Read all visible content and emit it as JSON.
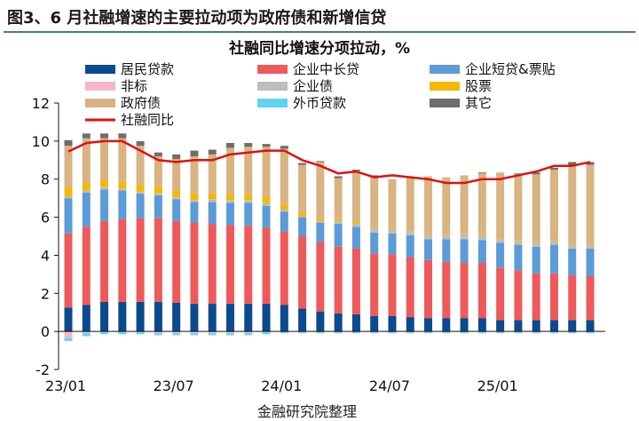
{
  "figure_title": "图3、6 月社融增速的主要拉动项为政府债和新增信贷",
  "source_note": "金融研究院整理",
  "chart_data": {
    "type": "bar",
    "stacked": true,
    "title": "社融同比增速分项拉动，%",
    "xlabel": "",
    "ylabel": "",
    "ylim": [
      -2,
      12
    ],
    "yticks": [
      "-2",
      "0",
      "2",
      "4",
      "6",
      "8",
      "10",
      "12"
    ],
    "x_tick_labels": [
      "23/01",
      "23/07",
      "24/01",
      "24/07",
      "25/01"
    ],
    "x_tick_index": [
      0,
      6,
      12,
      18,
      24
    ],
    "grid": false,
    "legend_position": "top",
    "categories": [
      "2023-01",
      "2023-02",
      "2023-03",
      "2023-04",
      "2023-05",
      "2023-06",
      "2023-07",
      "2023-08",
      "2023-09",
      "2023-10",
      "2023-11",
      "2023-12",
      "2024-01",
      "2024-02",
      "2024-03",
      "2024-04",
      "2024-05",
      "2024-06",
      "2024-07",
      "2024-08",
      "2024-09",
      "2024-10",
      "2024-11",
      "2024-12",
      "2025-01",
      "2025-02",
      "2025-03",
      "2025-04",
      "2025-05",
      "2025-06"
    ],
    "series": [
      {
        "name": "居民贷款",
        "color": "#0a4a8e",
        "values": [
          1.25,
          1.4,
          1.55,
          1.55,
          1.55,
          1.55,
          1.5,
          1.45,
          1.45,
          1.45,
          1.45,
          1.45,
          1.4,
          1.2,
          1.05,
          0.95,
          0.9,
          0.8,
          0.8,
          0.75,
          0.7,
          0.7,
          0.7,
          0.7,
          0.6,
          0.6,
          0.6,
          0.6,
          0.6,
          0.6
        ]
      },
      {
        "name": "企业中长贷",
        "color": "#ee5a5a",
        "values": [
          3.9,
          4.1,
          4.25,
          4.35,
          4.4,
          4.4,
          4.3,
          4.25,
          4.2,
          4.15,
          4.1,
          4.0,
          3.85,
          3.8,
          3.65,
          3.5,
          3.45,
          3.3,
          3.25,
          3.15,
          3.05,
          2.95,
          2.9,
          2.9,
          2.75,
          2.6,
          2.45,
          2.45,
          2.35,
          2.3
        ]
      },
      {
        "name": "企业短贷&票贴",
        "color": "#5b9bd8",
        "values": [
          1.85,
          1.8,
          1.65,
          1.5,
          1.3,
          1.2,
          1.15,
          1.1,
          1.15,
          1.15,
          1.2,
          1.15,
          1.05,
          1.0,
          1.0,
          1.2,
          1.15,
          1.1,
          1.1,
          1.15,
          1.1,
          1.2,
          1.25,
          1.2,
          1.3,
          1.35,
          1.4,
          1.5,
          1.4,
          1.45
        ]
      },
      {
        "name": "非标",
        "color": "#f7b6c8",
        "values": [
          -0.35,
          -0.1,
          -0.05,
          -0.05,
          -0.05,
          -0.1,
          -0.1,
          -0.1,
          -0.1,
          -0.1,
          -0.1,
          -0.05,
          -0.05,
          -0.05,
          -0.05,
          -0.05,
          -0.05,
          -0.05,
          -0.05,
          -0.05,
          -0.05,
          -0.05,
          -0.05,
          -0.05,
          -0.05,
          -0.05,
          -0.05,
          -0.05,
          -0.05,
          -0.05
        ]
      },
      {
        "name": "企业债",
        "color": "#bdbdbd",
        "values": [
          0.1,
          0.1,
          0.15,
          0.1,
          0.1,
          0.1,
          0.1,
          0.1,
          0.15,
          0.15,
          0.15,
          0.15,
          0.1,
          0.05,
          0.1,
          0.15,
          0.15,
          0.2,
          0.2,
          0.2,
          0.2,
          0.2,
          0.25,
          0.25,
          0.2,
          0.2,
          0.2,
          0.2,
          0.2,
          0.2
        ]
      },
      {
        "name": "股票",
        "color": "#f5b800",
        "values": [
          0.45,
          0.4,
          0.35,
          0.35,
          0.35,
          0.35,
          0.35,
          0.35,
          0.3,
          0.3,
          0.3,
          0.3,
          0.25,
          0.2,
          0.15,
          0.1,
          0.1,
          0.05,
          0.05,
          0.05,
          0.05,
          0.05,
          0.05,
          0.05,
          0.05,
          0.05,
          0.05,
          0.05,
          0.05,
          0.05
        ]
      },
      {
        "name": "政府债",
        "color": "#d9b382",
        "values": [
          2.2,
          2.35,
          2.2,
          2.3,
          2.05,
          1.6,
          1.65,
          1.95,
          2.05,
          2.45,
          2.5,
          2.65,
          2.95,
          2.5,
          2.95,
          2.15,
          2.7,
          2.7,
          2.6,
          2.85,
          3.05,
          3.0,
          3.05,
          3.2,
          3.45,
          3.45,
          3.55,
          3.7,
          4.15,
          4.15
        ]
      },
      {
        "name": "外币贷款",
        "color": "#5fd4f0",
        "values": [
          -0.15,
          -0.15,
          -0.1,
          -0.1,
          -0.1,
          -0.1,
          -0.1,
          -0.1,
          -0.1,
          -0.1,
          -0.1,
          -0.1,
          -0.05,
          -0.05,
          -0.05,
          -0.05,
          -0.05,
          -0.05,
          -0.05,
          -0.05,
          -0.05,
          -0.05,
          -0.05,
          -0.05,
          -0.05,
          -0.05,
          -0.05,
          -0.05,
          -0.05,
          -0.05
        ]
      },
      {
        "name": "其它",
        "color": "#6e6e6e",
        "values": [
          0.3,
          0.25,
          0.25,
          0.25,
          0.25,
          0.2,
          0.25,
          0.3,
          0.25,
          0.25,
          0.2,
          0.15,
          0.15,
          0.1,
          0.05,
          0.1,
          0.05,
          0.05,
          0.0,
          0.0,
          0.0,
          0.0,
          0.0,
          0.05,
          0.0,
          0.05,
          0.1,
          0.1,
          0.15,
          0.15
        ]
      }
    ],
    "line": {
      "name": "社融同比",
      "color": "#e01010",
      "values": [
        9.45,
        9.9,
        10.0,
        10.0,
        9.5,
        9.0,
        8.9,
        9.0,
        9.0,
        9.3,
        9.4,
        9.5,
        9.5,
        9.0,
        8.7,
        8.3,
        8.4,
        8.1,
        8.2,
        8.1,
        8.0,
        7.8,
        7.8,
        8.0,
        8.0,
        8.2,
        8.4,
        8.7,
        8.7,
        8.9
      ]
    }
  }
}
